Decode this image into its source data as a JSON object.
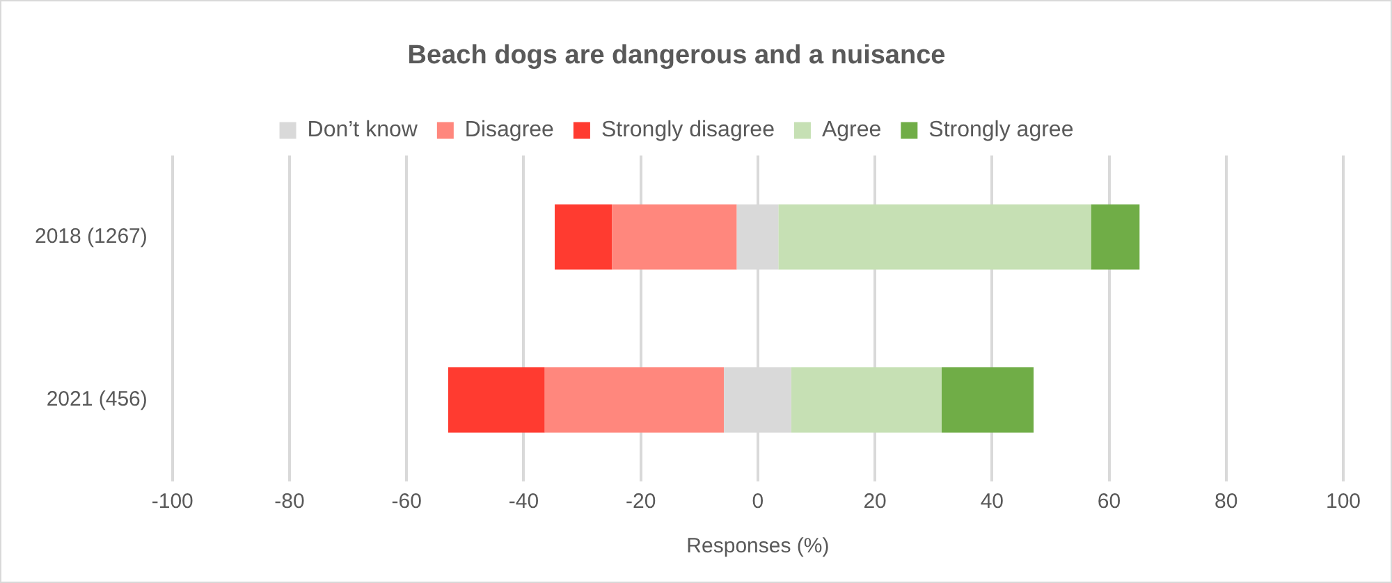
{
  "chart_data": {
    "type": "bar",
    "title": "Beach dogs are dangerous and a nuisance",
    "xlabel": "Responses (%)",
    "orientation": "horizontal",
    "categories": [
      "2018 (1267)",
      "2021 (456)"
    ],
    "series": [
      {
        "name": "Don’t know",
        "color": "#d9d9d9",
        "base": [
          -3.6,
          -5.8
        ],
        "values": [
          7.1,
          11.5
        ]
      },
      {
        "name": "Disagree",
        "color": "#ff877d",
        "base": [
          -24.9,
          -36.4
        ],
        "values": [
          21.3,
          30.6
        ]
      },
      {
        "name": "Strongly disagree",
        "color": "#ff3b30",
        "base": [
          -34.7,
          -52.9
        ],
        "values": [
          9.8,
          16.5
        ]
      },
      {
        "name": "Agree",
        "color": "#c6e0b4",
        "base": [
          3.5,
          5.7
        ],
        "values": [
          53.4,
          25.7
        ]
      },
      {
        "name": "Strongly agree",
        "color": "#70ad47",
        "base": [
          56.9,
          31.4
        ],
        "values": [
          8.3,
          15.7
        ]
      }
    ],
    "xlim": [
      -100,
      100
    ],
    "xticks": [
      -100,
      -80,
      -60,
      -40,
      -20,
      0,
      20,
      40,
      60,
      80,
      100
    ],
    "grid": "x",
    "legend": "top"
  }
}
